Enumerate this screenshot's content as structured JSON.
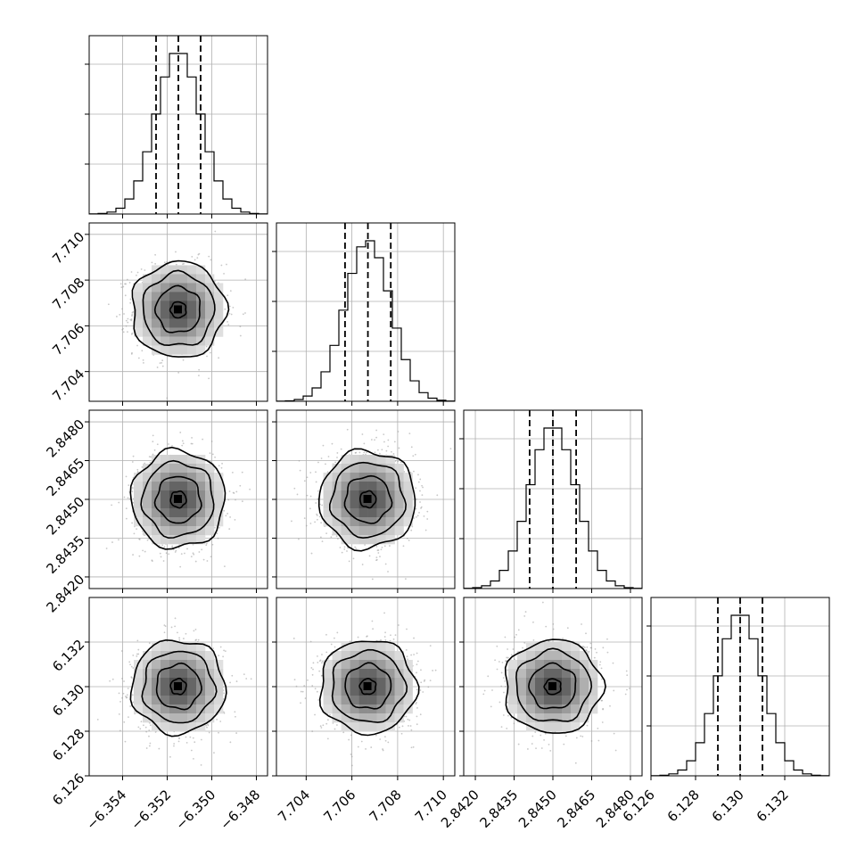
{
  "chart_data": {
    "type": "corner",
    "parameters": [
      {
        "mean": -6.3515,
        "sigma": 0.001,
        "range": [
          -6.3555,
          -6.3475
        ],
        "ticks": [
          -6.354,
          -6.352,
          -6.35,
          -6.348
        ],
        "tick_labels": [
          "−6.354",
          "−6.352",
          "−6.350",
          "−6.348"
        ],
        "quantiles": [
          -6.3525,
          -6.3515,
          -6.3505
        ]
      },
      {
        "mean": 7.7067,
        "sigma": 0.001,
        "range": [
          7.7027,
          7.7105
        ],
        "ticks": [
          7.704,
          7.706,
          7.708,
          7.71
        ],
        "tick_labels": [
          "7.704",
          "7.706",
          "7.708",
          "7.710"
        ],
        "quantiles": [
          7.7057,
          7.7067,
          7.7077
        ]
      },
      {
        "mean": 2.845,
        "sigma": 0.0009,
        "range": [
          2.84155,
          2.84845
        ],
        "ticks": [
          2.842,
          2.8435,
          2.845,
          2.8465,
          2.848
        ],
        "tick_labels": [
          "2.8420",
          "2.8435",
          "2.8450",
          "2.8465",
          "2.8480"
        ],
        "quantiles": [
          2.8441,
          2.845,
          2.8459
        ]
      },
      {
        "mean": 6.13,
        "sigma": 0.001,
        "range": [
          6.126,
          6.134
        ],
        "ticks": [
          6.126,
          6.128,
          6.13,
          6.132
        ],
        "tick_labels": [
          "6.126",
          "6.128",
          "6.130",
          "6.132"
        ],
        "quantiles": [
          6.129,
          6.13,
          6.131
        ]
      }
    ],
    "histogram_bins": 20,
    "contour_levels": 4,
    "show_grid": true,
    "title": "",
    "xlabel": "",
    "ylabel": ""
  }
}
